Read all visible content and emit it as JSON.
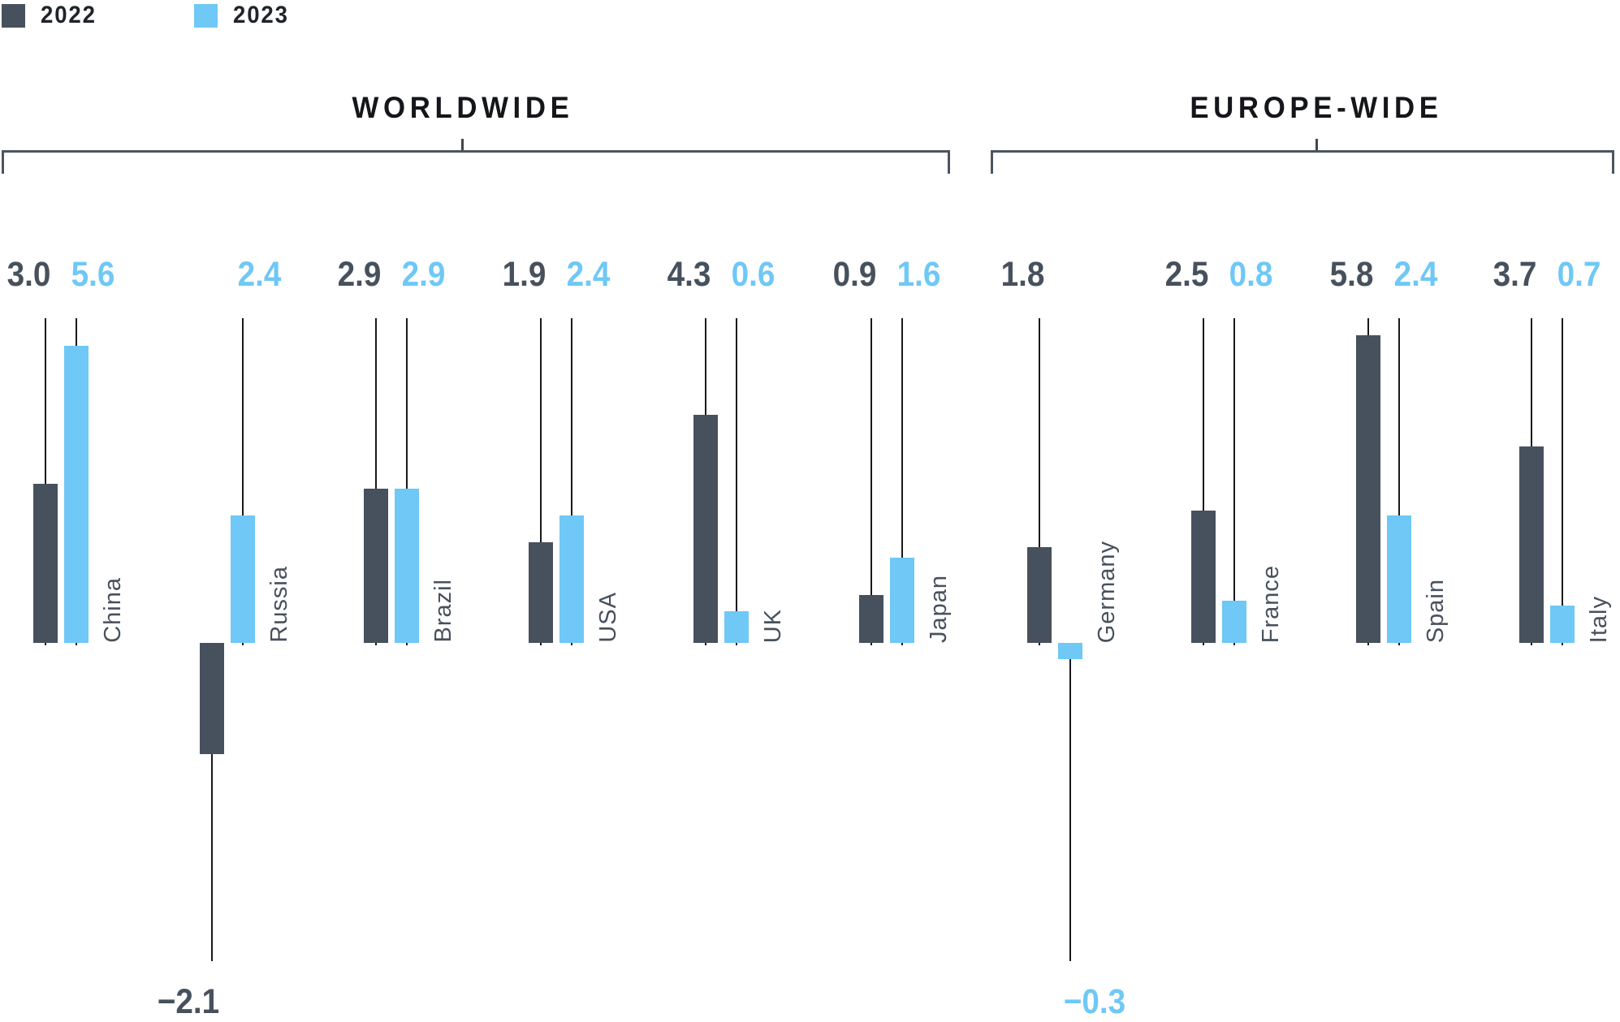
{
  "legend": {
    "items": [
      {
        "label": "2022"
      },
      {
        "label": "2023"
      }
    ]
  },
  "sections": {
    "worldwide": {
      "title": "WORLDWIDE"
    },
    "europe": {
      "title": "EUROPE-WIDE"
    }
  },
  "colors": {
    "series_2022": "#47515D",
    "series_2023": "#6FC8F6",
    "stem": "#17191D",
    "bracket": "#4A5560",
    "header_text": "#14161A",
    "legend_text": "#1F232A"
  },
  "chart_data": {
    "type": "bar",
    "title": "",
    "categories": [
      "China",
      "Russia",
      "Brazil",
      "USA",
      "UK",
      "Japan",
      "Germany",
      "France",
      "Spain",
      "Italy"
    ],
    "series": [
      {
        "name": "2022",
        "values": [
          3.0,
          -2.1,
          2.9,
          1.9,
          4.3,
          0.9,
          1.8,
          2.5,
          5.8,
          3.7
        ]
      },
      {
        "name": "2023",
        "values": [
          5.6,
          2.4,
          2.9,
          2.4,
          0.6,
          1.6,
          -0.3,
          0.8,
          2.4,
          0.7
        ]
      }
    ],
    "groups": [
      {
        "section": "WORLDWIDE",
        "categories": [
          "China",
          "Russia",
          "Brazil",
          "USA",
          "UK",
          "Japan"
        ]
      },
      {
        "section": "EUROPE-WIDE",
        "categories": [
          "Germany",
          "France",
          "Spain",
          "Italy"
        ]
      }
    ],
    "value_labels": "each bar labeled with one decimal; negative values labeled below the chart",
    "negative_label_values": [
      "−2.1",
      "−0.3"
    ],
    "baseline_value": 0,
    "grid": false,
    "axes_hidden": true,
    "legend_position": "top-left"
  }
}
